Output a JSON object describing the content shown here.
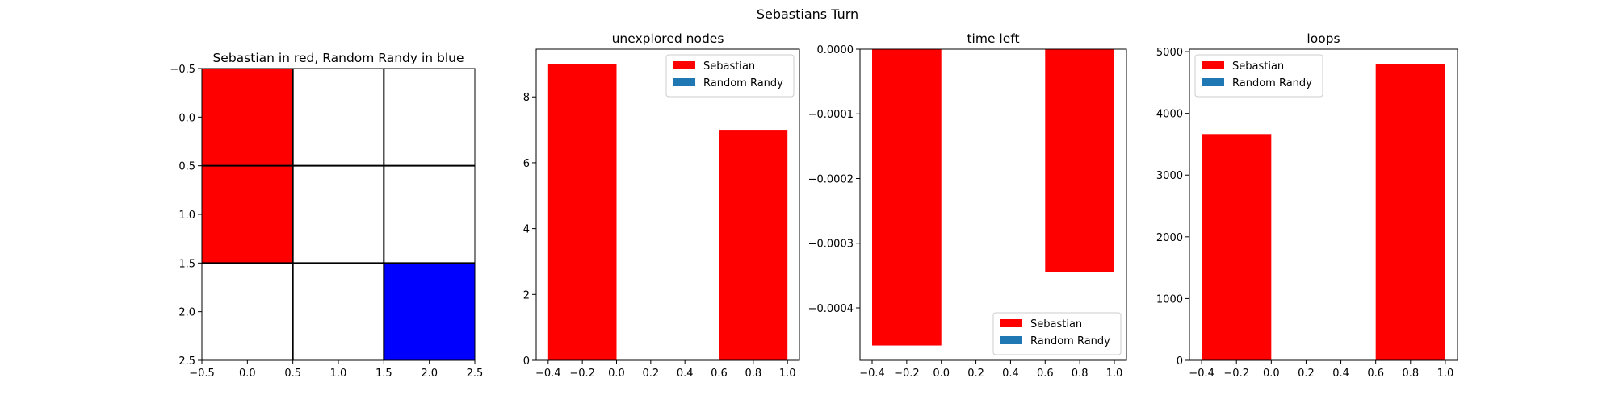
{
  "suptitle": "Sebastians Turn",
  "colors": {
    "sebastian": "#ff0000",
    "random_randy": "#1f77b4",
    "grid_red": "#ff0000",
    "grid_blue": "#0000ff",
    "grid_empty": "#ffffff"
  },
  "chart_data": [
    {
      "type": "heatmap",
      "title": "Sebastian in red, Random Randy in blue",
      "xlim": [
        -0.5,
        2.5
      ],
      "ylim": [
        2.5,
        -0.5
      ],
      "xticks": [
        "−0.5",
        "0.0",
        "0.5",
        "1.0",
        "1.5",
        "2.0",
        "2.5"
      ],
      "yticks": [
        "−0.5",
        "0.0",
        "0.5",
        "1.0",
        "1.5",
        "2.0",
        "2.5"
      ],
      "cells": [
        [
          "red",
          "empty",
          "empty"
        ],
        [
          "red",
          "empty",
          "empty"
        ],
        [
          "empty",
          "empty",
          "blue"
        ]
      ],
      "grid_lines": [
        0.5,
        1.5
      ]
    },
    {
      "type": "bar",
      "title": "unexplored nodes",
      "xlim": [
        -0.47,
        1.07
      ],
      "ylim": [
        0,
        9.45
      ],
      "bar_width": 0.4,
      "xticks": [
        "−0.4",
        "−0.2",
        "0.0",
        "0.2",
        "0.4",
        "0.6",
        "0.8",
        "1.0"
      ],
      "yticks": [
        "0",
        "2",
        "4",
        "6",
        "8"
      ],
      "legend_position": "top-right",
      "series": [
        {
          "name": "Sebastian",
          "x": [
            -0.2,
            0.8
          ],
          "values": [
            9,
            7
          ]
        },
        {
          "name": "Random Randy",
          "x": [],
          "values": []
        }
      ]
    },
    {
      "type": "bar",
      "title": "time left",
      "xlim": [
        -0.47,
        1.07
      ],
      "ylim": [
        -0.000481,
        0
      ],
      "bar_width": 0.4,
      "xticks": [
        "−0.4",
        "−0.2",
        "0.0",
        "0.2",
        "0.4",
        "0.6",
        "0.8",
        "1.0"
      ],
      "yticks": [
        "0.0000",
        "−0.0001",
        "−0.0002",
        "−0.0003",
        "−0.0004"
      ],
      "legend_position": "bottom-right",
      "series": [
        {
          "name": "Sebastian",
          "x": [
            -0.2,
            0.8
          ],
          "values": [
            -0.000458,
            -0.000345
          ]
        },
        {
          "name": "Random Randy",
          "x": [],
          "values": []
        }
      ]
    },
    {
      "type": "bar",
      "title": "loops",
      "xlim": [
        -0.47,
        1.07
      ],
      "ylim": [
        0,
        5040
      ],
      "bar_width": 0.4,
      "xticks": [
        "−0.4",
        "−0.2",
        "0.0",
        "0.2",
        "0.4",
        "0.6",
        "0.8",
        "1.0"
      ],
      "yticks": [
        "0",
        "1000",
        "2000",
        "3000",
        "4000",
        "5000"
      ],
      "legend_position": "top-left",
      "series": [
        {
          "name": "Sebastian",
          "x": [
            -0.2,
            0.8
          ],
          "values": [
            3665,
            4800
          ]
        },
        {
          "name": "Random Randy",
          "x": [],
          "values": []
        }
      ]
    }
  ]
}
